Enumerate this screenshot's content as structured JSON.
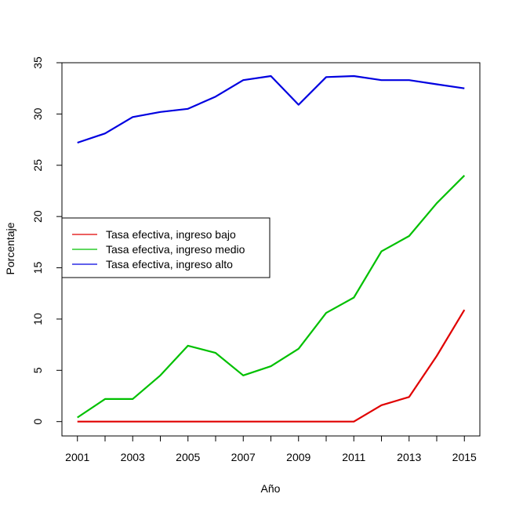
{
  "chart_data": {
    "type": "line",
    "title": "",
    "xlabel": "Año",
    "ylabel": "Porcentaje",
    "x": [
      2001,
      2002,
      2003,
      2004,
      2005,
      2006,
      2007,
      2008,
      2009,
      2010,
      2011,
      2012,
      2013,
      2014,
      2015
    ],
    "xticks": [
      2001,
      2003,
      2005,
      2007,
      2009,
      2011,
      2013,
      2015
    ],
    "xlim": [
      2000.44,
      2015.56
    ],
    "yticks": [
      0,
      5,
      10,
      15,
      20,
      25,
      30,
      35
    ],
    "ylim": [
      -1.4,
      35.0
    ],
    "grid": false,
    "legend_position": "middle-left",
    "series": [
      {
        "name": "Tasa efectiva, ingreso bajo",
        "color": "#e00000",
        "values": [
          0,
          0,
          0,
          0,
          0,
          0,
          0,
          0,
          0,
          0,
          0,
          1.6,
          2.4,
          6.4,
          10.9
        ]
      },
      {
        "name": "Tasa efectiva, ingreso medio",
        "color": "#00c000",
        "values": [
          0.4,
          2.2,
          2.2,
          4.5,
          7.4,
          6.7,
          4.5,
          5.4,
          7.1,
          10.6,
          12.1,
          16.6,
          18.1,
          21.3,
          24.0
        ]
      },
      {
        "name": "Tasa efectiva, ingreso alto",
        "color": "#0000e0",
        "values": [
          27.2,
          28.1,
          29.7,
          30.2,
          30.5,
          31.7,
          33.3,
          33.7,
          30.9,
          33.6,
          33.7,
          33.3,
          33.3,
          32.9,
          32.5
        ]
      }
    ]
  }
}
